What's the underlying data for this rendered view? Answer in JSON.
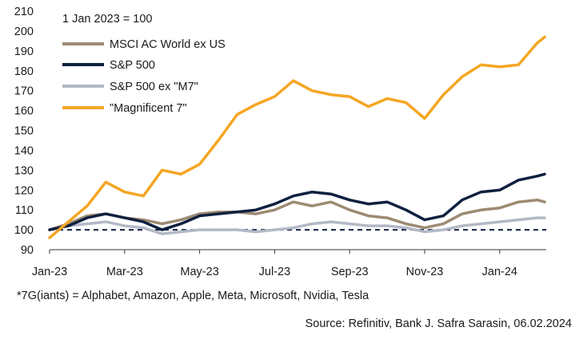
{
  "chart_data": {
    "type": "line",
    "title": "",
    "subtitle": "1 Jan 2023 = 100",
    "xlabel": "",
    "ylabel": "",
    "ylim": [
      90,
      210
    ],
    "yticks": [
      90,
      100,
      110,
      120,
      130,
      140,
      150,
      160,
      170,
      180,
      190,
      200,
      210
    ],
    "xticks": [
      "Jan-23",
      "Mar-23",
      "May-23",
      "Jul-23",
      "Sep-23",
      "Nov-23",
      "Jan-24"
    ],
    "reference_line": 100,
    "grid": false,
    "legend_position": "top-left",
    "x_months": [
      0,
      0.5,
      1,
      1.5,
      2,
      2.5,
      3,
      3.5,
      4,
      4.5,
      5,
      5.5,
      6,
      6.5,
      7,
      7.5,
      8,
      8.5,
      9,
      9.5,
      10,
      10.5,
      11,
      11.5,
      12,
      12.5,
      13,
      13.2
    ],
    "series": [
      {
        "name": "MSCI AC World ex US",
        "color": "#9c8b73",
        "values": [
          100,
          103,
          107,
          108,
          106,
          105,
          103,
          105,
          108,
          109,
          109,
          108,
          110,
          114,
          112,
          114,
          110,
          107,
          106,
          103,
          101,
          103,
          108,
          110,
          111,
          114,
          115,
          114
        ]
      },
      {
        "name": "S&P 500",
        "color": "#0f2040",
        "values": [
          100,
          102,
          106,
          108,
          106,
          104,
          100,
          103,
          107,
          108,
          109,
          110,
          113,
          117,
          119,
          118,
          115,
          113,
          114,
          110,
          105,
          107,
          115,
          119,
          120,
          125,
          127,
          128
        ]
      },
      {
        "name": "S&P 500 ex \"M7\"",
        "color": "#b3b9c6",
        "values": [
          100,
          102,
          103,
          104,
          102,
          101,
          98,
          99,
          100,
          100,
          100,
          99,
          100,
          101,
          103,
          104,
          103,
          102,
          102,
          101,
          99,
          100,
          102,
          103,
          104,
          105,
          106,
          106
        ]
      },
      {
        "name": "\"Magnificent 7\"",
        "color": "#f5a623",
        "values": [
          96,
          104,
          112,
          124,
          119,
          117,
          130,
          128,
          133,
          145,
          158,
          163,
          167,
          175,
          170,
          168,
          167,
          162,
          166,
          164,
          156,
          168,
          177,
          183,
          182,
          183,
          194,
          197
        ]
      }
    ]
  },
  "footnotes": {
    "definition": "*7G(iants) = Alphabet, Amazon, Apple, Meta, Microsoft, Nvidia, Tesla",
    "source": "Source: Refinitiv, Bank J. Safra Sarasin, 06.02.2024"
  }
}
